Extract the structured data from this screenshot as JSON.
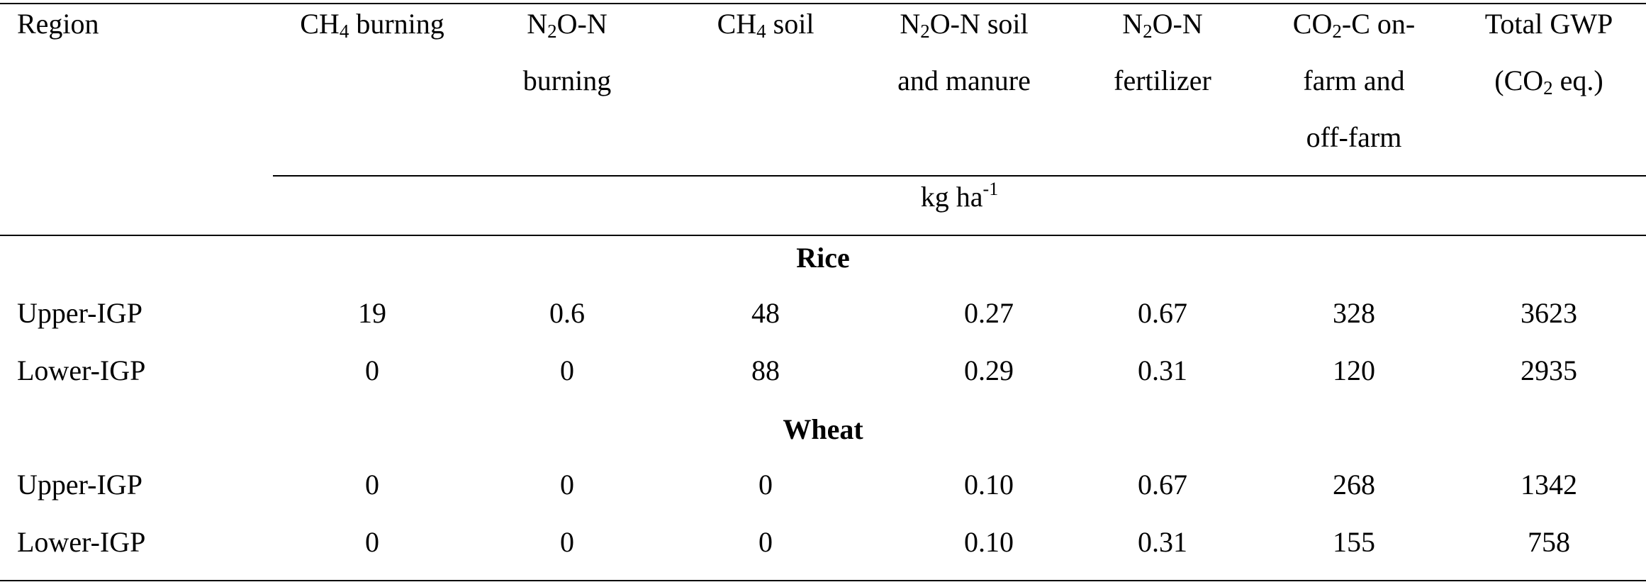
{
  "header": {
    "region": "Region",
    "ch4_burning": {
      "pre": "CH",
      "sub": "4",
      "post": " burning"
    },
    "n2o_burning": {
      "l1pre": "N",
      "l1sub": "2",
      "l1post": "O-N",
      "l2": "burning"
    },
    "ch4_soil": {
      "pre": "CH",
      "sub": "4",
      "post": " soil"
    },
    "n2o_soil": {
      "l1pre": "N",
      "l1sub": "2",
      "l1post": "O-N soil",
      "l2": "and manure"
    },
    "n2o_fert": {
      "l1pre": "N",
      "l1sub": "2",
      "l1post": "O-N",
      "l2": "fertilizer"
    },
    "co2": {
      "l1pre": "CO",
      "l1sub": "2",
      "l1post": "-C on-",
      "l2": "farm and",
      "l3": "off-farm"
    },
    "gwp": {
      "l1": "Total GWP",
      "l2pre": "(CO",
      "l2sub": "2",
      "l2post": " eq.)"
    }
  },
  "units": {
    "base": "kg ha",
    "sup": "-1"
  },
  "sections": [
    {
      "label": "Rice",
      "rows": [
        {
          "region": "Upper-IGP",
          "values": [
            "19",
            "0.6",
            "48",
            "0.27",
            "0.67",
            "328",
            "3623"
          ]
        },
        {
          "region": "Lower-IGP",
          "values": [
            "0",
            "0",
            "88",
            "0.29",
            "0.31",
            "120",
            "2935"
          ]
        }
      ]
    },
    {
      "label": "Wheat",
      "rows": [
        {
          "region": "Upper-IGP",
          "values": [
            "0",
            "0",
            "0",
            "0.10",
            "0.67",
            "268",
            "1342"
          ]
        },
        {
          "region": "Lower-IGP",
          "values": [
            "0",
            "0",
            "0",
            "0.10",
            "0.31",
            "155",
            "758"
          ]
        }
      ]
    }
  ]
}
